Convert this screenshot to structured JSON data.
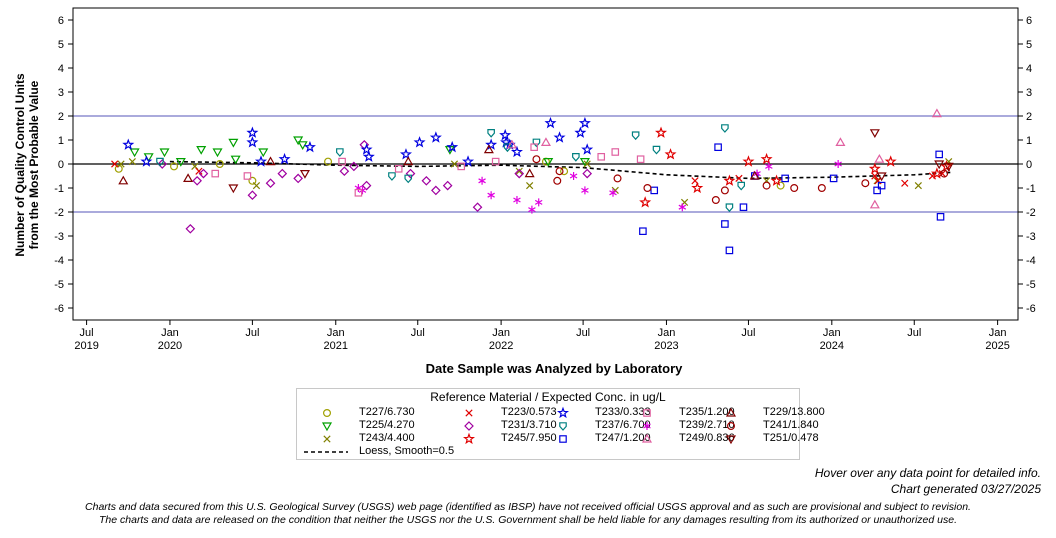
{
  "chart_data": {
    "type": "scatter",
    "xlabel": "Date Sample was Analyzed by Laboratory",
    "ylabel_line1": "Number of Quality Control Units",
    "ylabel_line2": "from the Most Probable Value",
    "ylim": [
      -6.5,
      6.5
    ],
    "y_ticks": [
      6,
      5,
      4,
      3,
      2,
      1,
      0,
      -1,
      -2,
      -3,
      -4,
      -5,
      -6
    ],
    "x_range": [
      "2019-06-01",
      "2025-02-15"
    ],
    "x_ticks": [
      {
        "date": "2019-07-01",
        "m": "Jul",
        "y": "2019"
      },
      {
        "date": "2020-01-01",
        "m": "Jan",
        "y": "2020"
      },
      {
        "date": "2020-07-01",
        "m": "Jul",
        "y": ""
      },
      {
        "date": "2021-01-01",
        "m": "Jan",
        "y": "2021"
      },
      {
        "date": "2021-07-01",
        "m": "Jul",
        "y": ""
      },
      {
        "date": "2022-01-01",
        "m": "Jan",
        "y": "2022"
      },
      {
        "date": "2022-07-01",
        "m": "Jul",
        "y": ""
      },
      {
        "date": "2023-01-01",
        "m": "Jan",
        "y": "2023"
      },
      {
        "date": "2023-07-01",
        "m": "Jul",
        "y": ""
      },
      {
        "date": "2024-01-01",
        "m": "Jan",
        "y": "2024"
      },
      {
        "date": "2024-07-01",
        "m": "Jul",
        "y": ""
      },
      {
        "date": "2025-01-01",
        "m": "Jan",
        "y": "2025"
      }
    ],
    "reference_lines": [
      2,
      0,
      -2
    ],
    "legend_title": "Reference Material / Expected Conc. in ug/L",
    "series": [
      {
        "name": "T227/6.730",
        "marker": "circle",
        "color": "#a0a000",
        "points": [
          [
            "2019-09-10",
            -0.2
          ],
          [
            "2020-01-10",
            -0.1
          ],
          [
            "2020-04-20",
            0.0
          ],
          [
            "2020-07-01",
            -0.7
          ],
          [
            "2020-12-15",
            0.1
          ],
          [
            "2022-04-10",
            0.1
          ],
          [
            "2022-05-20",
            -0.3
          ],
          [
            "2023-09-10",
            -0.9
          ]
        ]
      },
      {
        "name": "T225/4.270",
        "marker": "triangle-down",
        "color": "#00a000",
        "points": [
          [
            "2019-10-15",
            0.5
          ],
          [
            "2019-11-15",
            0.3
          ],
          [
            "2019-12-20",
            0.5
          ],
          [
            "2020-01-25",
            0.1
          ],
          [
            "2020-03-10",
            0.6
          ],
          [
            "2020-04-15",
            0.5
          ],
          [
            "2020-05-20",
            0.9
          ],
          [
            "2020-05-25",
            0.2
          ],
          [
            "2020-07-25",
            0.5
          ],
          [
            "2020-10-10",
            1.0
          ],
          [
            "2020-10-20",
            0.8
          ],
          [
            "2021-09-10",
            0.6
          ],
          [
            "2022-04-15",
            0.1
          ],
          [
            "2022-07-05",
            0.1
          ]
        ]
      },
      {
        "name": "T243/4.400",
        "marker": "x",
        "color": "#808000",
        "points": [
          [
            "2019-09-15",
            0.0
          ],
          [
            "2019-10-10",
            0.1
          ],
          [
            "2020-02-25",
            -0.1
          ],
          [
            "2020-07-10",
            -0.9
          ],
          [
            "2021-09-20",
            0.0
          ],
          [
            "2022-02-10",
            -0.3
          ],
          [
            "2022-03-05",
            -0.9
          ],
          [
            "2022-07-10",
            0.0
          ],
          [
            "2022-09-10",
            -1.1
          ],
          [
            "2023-02-10",
            -1.6
          ],
          [
            "2023-08-10",
            -0.7
          ],
          [
            "2024-04-10",
            -0.7
          ],
          [
            "2024-07-10",
            -0.9
          ],
          [
            "2024-09-15",
            0.1
          ]
        ]
      },
      {
        "name": "T223/0.573",
        "marker": "x",
        "color": "#e00000",
        "points": [
          [
            "2019-09-01",
            0.0
          ],
          [
            "2020-03-05",
            -0.3
          ],
          [
            "2023-03-05",
            -0.7
          ],
          [
            "2023-06-10",
            -0.6
          ],
          [
            "2024-04-05",
            -0.5
          ],
          [
            "2024-04-12",
            -0.7
          ],
          [
            "2024-06-10",
            -0.8
          ],
          [
            "2024-08-10",
            -0.5
          ],
          [
            "2024-09-01",
            -0.4
          ]
        ]
      },
      {
        "name": "T231/3.710",
        "marker": "diamond",
        "color": "#a000a0",
        "points": [
          [
            "2019-12-15",
            0.0
          ],
          [
            "2020-02-15",
            -2.7
          ],
          [
            "2020-03-01",
            -0.7
          ],
          [
            "2020-03-15",
            -0.4
          ],
          [
            "2020-07-01",
            -1.3
          ],
          [
            "2020-08-10",
            -0.8
          ],
          [
            "2020-09-05",
            -0.4
          ],
          [
            "2020-10-10",
            -0.6
          ],
          [
            "2021-01-20",
            -0.3
          ],
          [
            "2021-02-10",
            -0.1
          ],
          [
            "2021-03-10",
            -0.9
          ],
          [
            "2021-03-05",
            0.8
          ],
          [
            "2021-06-15",
            -0.4
          ],
          [
            "2021-07-20",
            -0.7
          ],
          [
            "2021-08-10",
            -1.1
          ],
          [
            "2021-09-05",
            -0.9
          ],
          [
            "2021-11-10",
            -1.8
          ],
          [
            "2022-02-10",
            -0.4
          ],
          [
            "2022-07-10",
            -0.4
          ]
        ]
      },
      {
        "name": "T245/7.950",
        "marker": "star",
        "color": "#e00000",
        "points": [
          [
            "2022-11-15",
            -1.6
          ],
          [
            "2022-12-20",
            1.3
          ],
          [
            "2023-01-10",
            0.4
          ],
          [
            "2023-03-10",
            -1.0
          ],
          [
            "2023-05-20",
            -0.7
          ],
          [
            "2023-07-01",
            0.1
          ],
          [
            "2023-08-10",
            0.2
          ],
          [
            "2023-09-01",
            -0.7
          ],
          [
            "2024-04-05",
            -0.2
          ],
          [
            "2024-05-10",
            0.1
          ],
          [
            "2024-08-20",
            -0.4
          ],
          [
            "2024-09-10",
            -0.1
          ]
        ]
      },
      {
        "name": "T233/0.333",
        "marker": "star",
        "color": "#0000e0",
        "points": [
          [
            "2019-10-01",
            0.8
          ],
          [
            "2019-11-10",
            0.1
          ],
          [
            "2020-07-01",
            1.3
          ],
          [
            "2020-07-01",
            0.9
          ],
          [
            "2020-07-20",
            0.1
          ],
          [
            "2020-09-10",
            0.2
          ],
          [
            "2020-11-05",
            0.7
          ],
          [
            "2021-03-10",
            0.6
          ],
          [
            "2021-03-15",
            0.3
          ],
          [
            "2021-06-05",
            0.4
          ],
          [
            "2021-07-05",
            0.9
          ],
          [
            "2021-08-10",
            1.1
          ],
          [
            "2021-09-15",
            0.7
          ],
          [
            "2021-10-20",
            0.1
          ],
          [
            "2021-12-10",
            0.8
          ],
          [
            "2022-01-10",
            1.2
          ],
          [
            "2022-01-12",
            0.9
          ],
          [
            "2022-01-20",
            0.8
          ],
          [
            "2022-02-05",
            0.5
          ],
          [
            "2022-04-20",
            1.7
          ],
          [
            "2022-05-10",
            1.1
          ],
          [
            "2022-07-05",
            1.7
          ],
          [
            "2022-07-10",
            0.6
          ],
          [
            "2022-06-25",
            1.3
          ]
        ]
      },
      {
        "name": "T237/6.700",
        "marker": "shield",
        "color": "#008080",
        "points": [
          [
            "2019-12-10",
            0.1
          ],
          [
            "2021-01-10",
            0.5
          ],
          [
            "2021-05-05",
            -0.5
          ],
          [
            "2021-06-10",
            -0.6
          ],
          [
            "2021-12-10",
            1.3
          ],
          [
            "2022-01-15",
            0.7
          ],
          [
            "2022-03-20",
            0.9
          ],
          [
            "2022-06-15",
            0.3
          ],
          [
            "2022-10-25",
            1.2
          ],
          [
            "2022-12-10",
            0.6
          ],
          [
            "2023-05-10",
            1.5
          ],
          [
            "2023-05-20",
            -1.8
          ],
          [
            "2023-06-15",
            -0.9
          ]
        ]
      },
      {
        "name": "T247/1.200",
        "marker": "square",
        "color": "#0000e0",
        "points": [
          [
            "2022-11-10",
            -2.8
          ],
          [
            "2022-12-05",
            -1.1
          ],
          [
            "2023-04-25",
            0.7
          ],
          [
            "2023-05-10",
            -2.5
          ],
          [
            "2023-05-20",
            -3.6
          ],
          [
            "2023-06-20",
            -1.8
          ],
          [
            "2023-07-15",
            -0.5
          ],
          [
            "2023-09-20",
            -0.6
          ],
          [
            "2024-01-05",
            -0.6
          ],
          [
            "2024-04-10",
            -1.1
          ],
          [
            "2024-04-20",
            -0.9
          ],
          [
            "2024-08-25",
            0.4
          ],
          [
            "2024-08-28",
            -2.2
          ]
        ]
      },
      {
        "name": "T239/2.710",
        "marker": "asterisk",
        "color": "#e000e0",
        "points": [
          [
            "2021-02-20",
            -1.0
          ],
          [
            "2021-03-01",
            -1.1
          ],
          [
            "2021-11-20",
            -0.7
          ],
          [
            "2021-12-10",
            -1.3
          ],
          [
            "2022-02-05",
            -1.5
          ],
          [
            "2022-03-10",
            -1.9
          ],
          [
            "2022-03-25",
            -1.6
          ],
          [
            "2022-06-10",
            -0.5
          ],
          [
            "2022-07-05",
            -1.1
          ],
          [
            "2022-09-05",
            -1.2
          ],
          [
            "2023-02-05",
            -1.8
          ],
          [
            "2023-07-20",
            -0.4
          ],
          [
            "2023-08-15",
            -0.1
          ],
          [
            "2024-01-15",
            0.0
          ]
        ]
      },
      {
        "name": "T249/0.836",
        "marker": "triangle",
        "color": "#e060a0",
        "points": [
          [
            "2022-01-25",
            0.8
          ],
          [
            "2022-04-10",
            0.9
          ],
          [
            "2024-01-20",
            0.9
          ],
          [
            "2024-04-05",
            -1.7
          ],
          [
            "2024-04-15",
            0.2
          ],
          [
            "2024-08-20",
            2.1
          ]
        ]
      },
      {
        "name": "T235/1.200",
        "marker": "square",
        "color": "#e060a0",
        "points": [
          [
            "2020-04-10",
            -0.4
          ],
          [
            "2020-06-20",
            -0.5
          ],
          [
            "2021-01-15",
            0.1
          ],
          [
            "2021-02-20",
            -1.2
          ],
          [
            "2021-05-20",
            -0.2
          ],
          [
            "2021-10-05",
            -0.1
          ],
          [
            "2021-12-20",
            0.1
          ],
          [
            "2022-03-15",
            0.7
          ],
          [
            "2022-08-10",
            0.3
          ],
          [
            "2022-09-10",
            0.5
          ],
          [
            "2022-11-05",
            0.2
          ]
        ]
      },
      {
        "name": "T241/1.840",
        "marker": "circle",
        "color": "#a00000",
        "points": [
          [
            "2022-03-20",
            0.2
          ],
          [
            "2022-05-10",
            -0.3
          ],
          [
            "2022-05-05",
            -0.7
          ],
          [
            "2022-09-15",
            -0.6
          ],
          [
            "2022-11-20",
            -1.0
          ],
          [
            "2023-04-20",
            -1.5
          ],
          [
            "2023-05-10",
            -1.1
          ],
          [
            "2023-08-10",
            -0.9
          ],
          [
            "2023-10-10",
            -1.0
          ],
          [
            "2023-12-10",
            -1.0
          ],
          [
            "2024-03-15",
            -0.8
          ],
          [
            "2024-09-05",
            -0.4
          ]
        ]
      },
      {
        "name": "T229/13.800",
        "marker": "triangle",
        "color": "#800000",
        "points": [
          [
            "2019-09-20",
            -0.7
          ],
          [
            "2020-02-10",
            -0.6
          ],
          [
            "2020-08-10",
            0.1
          ],
          [
            "2021-06-10",
            0.1
          ],
          [
            "2021-12-05",
            0.6
          ],
          [
            "2022-03-05",
            -0.4
          ],
          [
            "2023-07-15",
            -0.5
          ]
        ]
      },
      {
        "name": "T251/0.478",
        "marker": "triangle-down",
        "color": "#800000",
        "points": [
          [
            "2020-05-20",
            -1.0
          ],
          [
            "2020-10-25",
            -0.4
          ],
          [
            "2024-04-05",
            1.3
          ],
          [
            "2024-04-20",
            -0.5
          ],
          [
            "2024-08-25",
            0.0
          ],
          [
            "2024-09-15",
            -0.1
          ]
        ]
      }
    ],
    "loess": {
      "name": "Loess, Smooth=0.5",
      "points": [
        [
          "2020-01-01",
          0.1
        ],
        [
          "2020-07-01",
          0.05
        ],
        [
          "2021-01-01",
          -0.05
        ],
        [
          "2021-07-01",
          -0.1
        ],
        [
          "2022-01-01",
          -0.05
        ],
        [
          "2022-07-01",
          -0.15
        ],
        [
          "2023-01-01",
          -0.45
        ],
        [
          "2023-07-01",
          -0.6
        ],
        [
          "2024-01-01",
          -0.55
        ],
        [
          "2024-07-01",
          -0.45
        ],
        [
          "2024-09-20",
          -0.35
        ]
      ]
    }
  },
  "footer": {
    "hover_note": "Hover over any data point for detailed info.",
    "generated": "Chart generated 03/27/2025",
    "disclaimer_line1": "Charts and data secured from this U.S. Geological Survey (USGS) web page (identified as IBSP) have not received official USGS approval and as such are provisional and subject to revision.",
    "disclaimer_line2": "The charts and data are released on the condition that neither the USGS nor the U.S. Government shall be held liable for any damages resulting from its authorized or unauthorized use."
  }
}
